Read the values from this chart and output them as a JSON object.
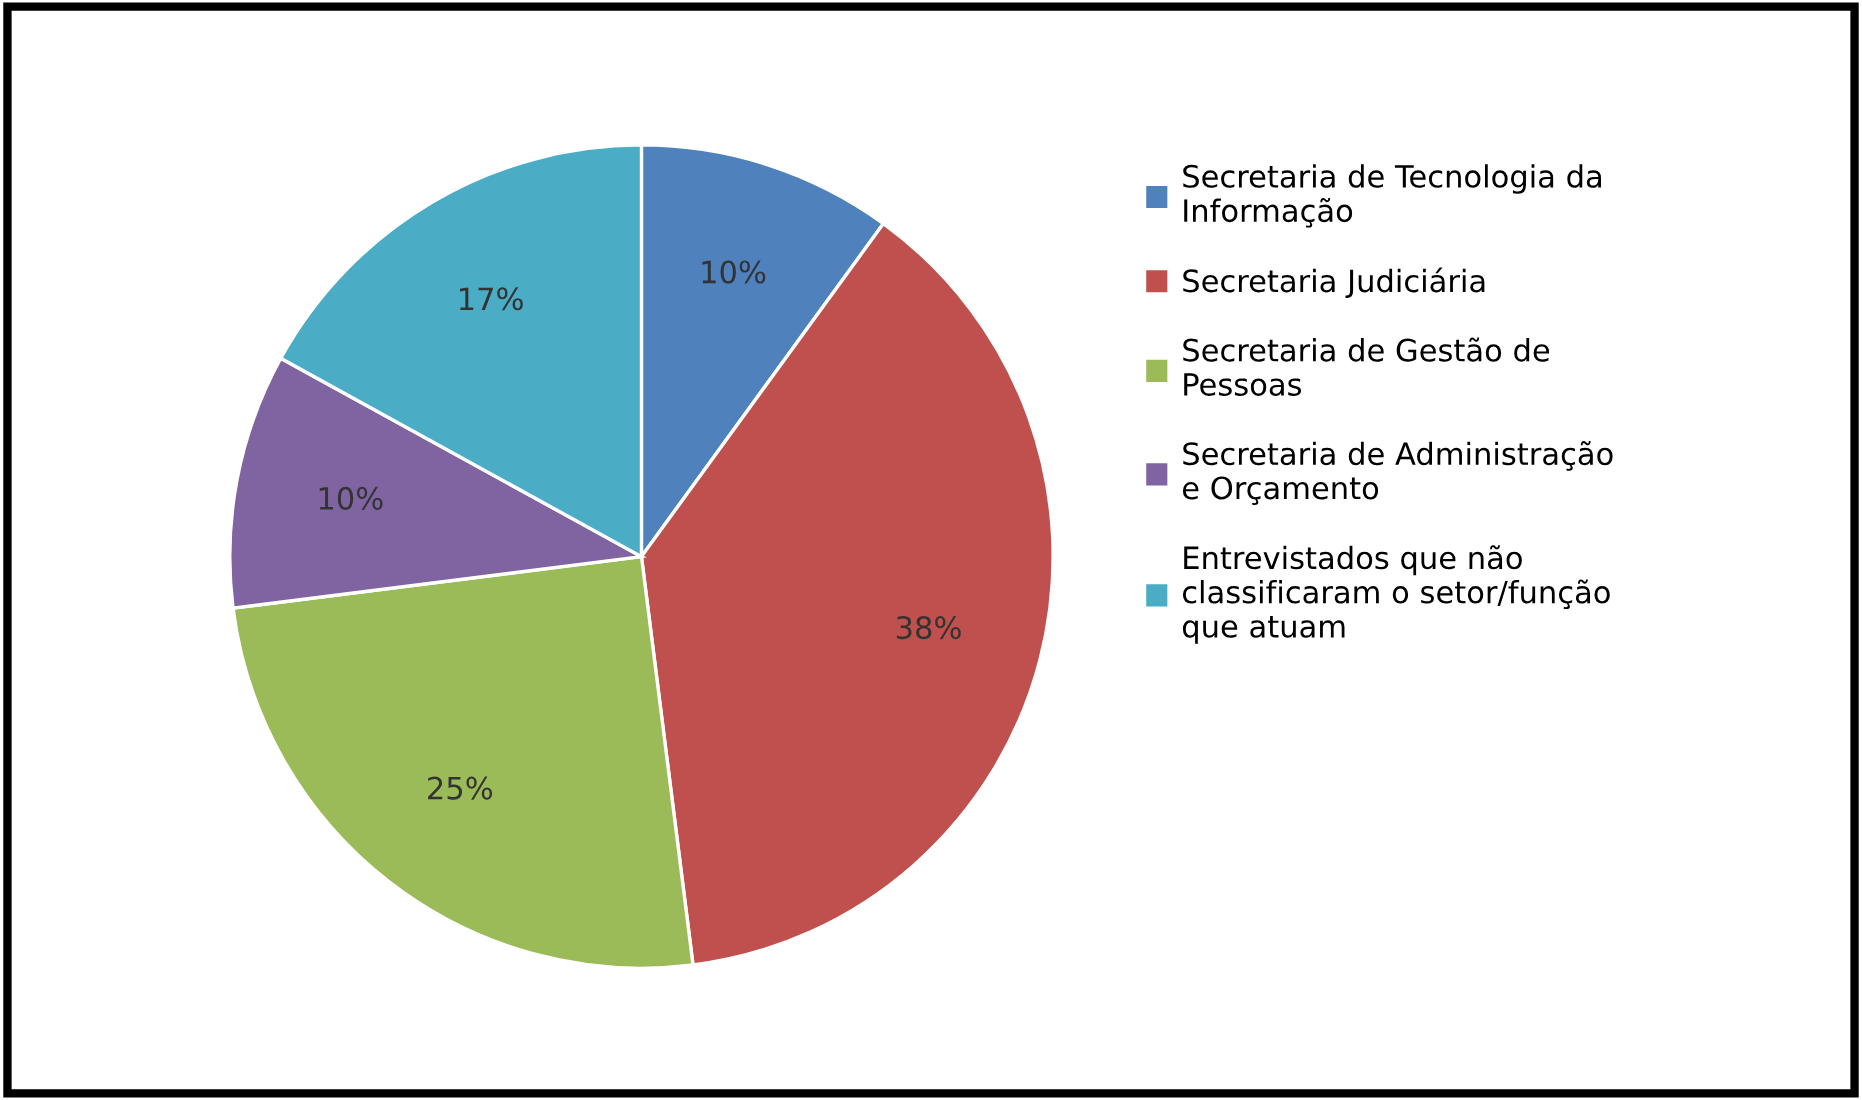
{
  "chart_data": {
    "type": "pie",
    "categories": [
      "Secretaria de Tecnologia da\nInformação",
      "Secretaria Judiciária",
      "Secretaria de Gestão de\nPessoas",
      "Secretaria de Administração\ne Orçamento",
      "Entrevistados que não\nclassificaram o setor/função\nque atuam"
    ],
    "values": [
      10,
      38,
      25,
      10,
      17
    ],
    "value_labels": [
      "10%",
      "38%",
      "25%",
      "10%",
      "17%"
    ],
    "colors": [
      "#4f81bd",
      "#c0504d",
      "#9bbb59",
      "#8064a2",
      "#4bacc6"
    ],
    "legend": "right"
  }
}
